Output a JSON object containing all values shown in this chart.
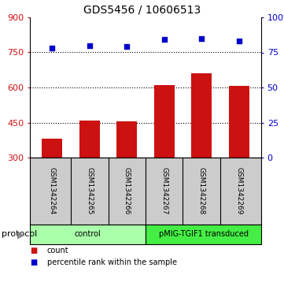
{
  "title": "GDS5456 / 10606513",
  "samples": [
    "GSM1342264",
    "GSM1342265",
    "GSM1342266",
    "GSM1342267",
    "GSM1342268",
    "GSM1342269"
  ],
  "counts": [
    380,
    460,
    455,
    610,
    660,
    607
  ],
  "percentiles": [
    78,
    80,
    79,
    84,
    85,
    83
  ],
  "bar_color": "#cc1111",
  "dot_color": "#0000cc",
  "ylim_left": [
    300,
    900
  ],
  "ylim_right": [
    0,
    100
  ],
  "yticks_left": [
    300,
    450,
    600,
    750,
    900
  ],
  "yticks_right": [
    0,
    25,
    50,
    75,
    100
  ],
  "ytick_dotted": [
    450,
    600,
    750
  ],
  "groups": [
    {
      "label": "control",
      "color": "#aaffaa",
      "start": 0,
      "end": 3
    },
    {
      "label": "pMIG-TGIF1 transduced",
      "color": "#44ee44",
      "start": 3,
      "end": 6
    }
  ],
  "protocol_label": "protocol",
  "legend_count": "count",
  "legend_percentile": "percentile rank within the sample",
  "background_color": "#ffffff",
  "label_area_color": "#cccccc",
  "title_fontsize": 10,
  "tick_fontsize": 8,
  "sample_fontsize": 6.5,
  "group_fontsize": 7,
  "legend_fontsize": 7
}
